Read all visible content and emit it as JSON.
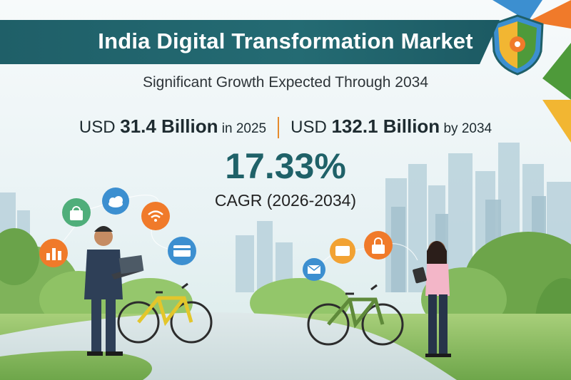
{
  "header": {
    "title": "India Digital Transformation Market"
  },
  "subtitle": "Significant Growth Expected Through 2034",
  "stats": {
    "left": {
      "prefix": "USD ",
      "value": "31.4 Billion",
      "suffix": " in 2025"
    },
    "right": {
      "prefix": "USD ",
      "value": "132.1 Billion",
      "suffix": " by 2034"
    }
  },
  "cagr": {
    "value": "17.33%",
    "label": "CAGR (2026-2034)"
  },
  "colors": {
    "banner": "#246b73",
    "accent_orange": "#f07a2a",
    "accent_blue": "#3c8fd0",
    "accent_green": "#4e9a3a",
    "accent_yellow": "#f2b632"
  },
  "icons": [
    "shield-gear-icon",
    "shopping-bag-icon",
    "cloud-icon",
    "wifi-icon",
    "bar-chart-icon",
    "payment-card-icon",
    "message-icon",
    "lock-icon",
    "email-icon"
  ],
  "people": [
    "businessman-with-laptop",
    "woman-with-tablet"
  ],
  "objects": [
    "yellow-e-bike",
    "green-e-bike"
  ]
}
